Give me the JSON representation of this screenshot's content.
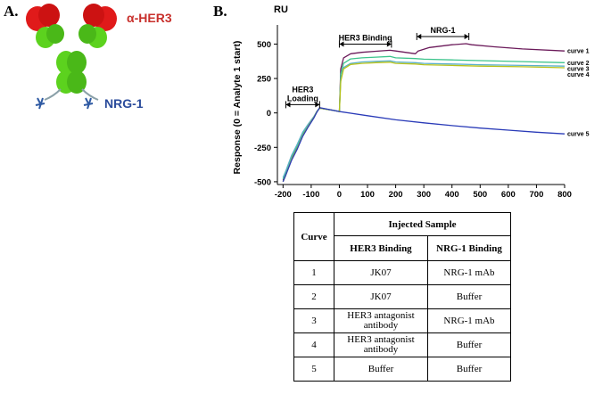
{
  "panels": {
    "a_label": "A.",
    "b_label": "B."
  },
  "antibody": {
    "her3_label": "α-HER3",
    "nrg1_label": "NRG-1",
    "colors": {
      "fab_tip": "#e01a1a",
      "body": "#5cd21e",
      "ligand": "#2f5aa3"
    }
  },
  "chart_data": {
    "type": "line",
    "unit_label": "RU",
    "ylabel": "Response (0 = Analyte 1 start)",
    "xlabel": "",
    "xlim": [
      -220,
      800
    ],
    "ylim": [
      -520,
      600
    ],
    "x_ticks": [
      "-200",
      "-100",
      "0",
      "100",
      "200",
      "300",
      "400",
      "500",
      "600",
      "700",
      "800"
    ],
    "y_ticks": [
      "500",
      "250",
      "0",
      "-250",
      "-500"
    ],
    "phases": [
      {
        "label_lines": [
          "HER3",
          "Loading"
        ],
        "x_start": -190,
        "x_end": -70,
        "y": 60
      },
      {
        "label_lines": [
          "HER3 Binding"
        ],
        "x_start": 0,
        "x_end": 185,
        "y": 500
      },
      {
        "label_lines": [
          "NRG-1"
        ],
        "x_start": 275,
        "x_end": 460,
        "y": 555
      }
    ],
    "series": [
      {
        "name": "curve 1",
        "color": "#6b1a5a",
        "x": [
          -200,
          -190,
          -170,
          -150,
          -130,
          -110,
          -90,
          -80,
          -70,
          -20,
          0,
          5,
          15,
          40,
          80,
          130,
          180,
          200,
          270,
          280,
          320,
          400,
          450,
          470,
          550,
          650,
          800
        ],
        "y": [
          -490,
          -440,
          -330,
          -250,
          -160,
          -90,
          -30,
          10,
          35,
          18,
          10,
          320,
          400,
          430,
          440,
          448,
          455,
          450,
          430,
          450,
          475,
          495,
          503,
          495,
          480,
          465,
          450
        ]
      },
      {
        "name": "curve 2",
        "color": "#3cc48c",
        "x": [
          -200,
          -190,
          -170,
          -150,
          -130,
          -110,
          -90,
          -80,
          -70,
          -20,
          0,
          5,
          15,
          40,
          80,
          130,
          180,
          200,
          270,
          300,
          400,
          500,
          650,
          800
        ],
        "y": [
          -480,
          -430,
          -320,
          -240,
          -150,
          -85,
          -28,
          10,
          35,
          18,
          10,
          280,
          360,
          392,
          400,
          405,
          410,
          400,
          395,
          390,
          385,
          380,
          373,
          365
        ]
      },
      {
        "name": "curve 3",
        "color": "#5ab0c8",
        "x": [
          -200,
          -190,
          -170,
          -150,
          -130,
          -110,
          -90,
          -80,
          -70,
          -20,
          0,
          5,
          15,
          40,
          80,
          130,
          180,
          200,
          270,
          300,
          400,
          500,
          650,
          800
        ],
        "y": [
          -470,
          -420,
          -310,
          -230,
          -140,
          -80,
          -25,
          10,
          35,
          18,
          10,
          240,
          330,
          360,
          370,
          375,
          378,
          370,
          365,
          360,
          355,
          350,
          345,
          340
        ]
      },
      {
        "name": "curve 4",
        "color": "#b8c21a",
        "x": [
          -200,
          -190,
          -170,
          -150,
          -130,
          -110,
          -90,
          -80,
          -70,
          -20,
          0,
          5,
          15,
          40,
          80,
          130,
          180,
          200,
          270,
          300,
          400,
          500,
          650,
          800
        ],
        "y": [
          -500,
          -450,
          -340,
          -260,
          -165,
          -95,
          -32,
          8,
          35,
          18,
          10,
          230,
          320,
          352,
          360,
          365,
          368,
          360,
          355,
          350,
          345,
          340,
          335,
          328
        ]
      },
      {
        "name": "curve 5",
        "color": "#2a3bb8",
        "x": [
          -200,
          -190,
          -170,
          -150,
          -130,
          -110,
          -90,
          -80,
          -70,
          0,
          100,
          200,
          300,
          400,
          500,
          600,
          700,
          800
        ],
        "y": [
          -500,
          -450,
          -345,
          -265,
          -170,
          -100,
          -35,
          5,
          38,
          10,
          -20,
          -50,
          -72,
          -92,
          -110,
          -125,
          -140,
          -152
        ]
      }
    ]
  },
  "table": {
    "curve_header": "Curve",
    "injected_header": "Injected Sample",
    "col1_header": "HER3 Binding",
    "col2_header": "NRG-1 Binding",
    "rows": [
      {
        "curve": "1",
        "her3": "JK07",
        "nrg1": "NRG-1 mAb"
      },
      {
        "curve": "2",
        "her3": "JK07",
        "nrg1": "Buffer"
      },
      {
        "curve": "3",
        "her3": "HER3 antagonist antibody",
        "nrg1": "NRG-1 mAb"
      },
      {
        "curve": "4",
        "her3": "HER3 antagonist antibody",
        "nrg1": "Buffer"
      },
      {
        "curve": "5",
        "her3": "Buffer",
        "nrg1": "Buffer"
      }
    ]
  }
}
